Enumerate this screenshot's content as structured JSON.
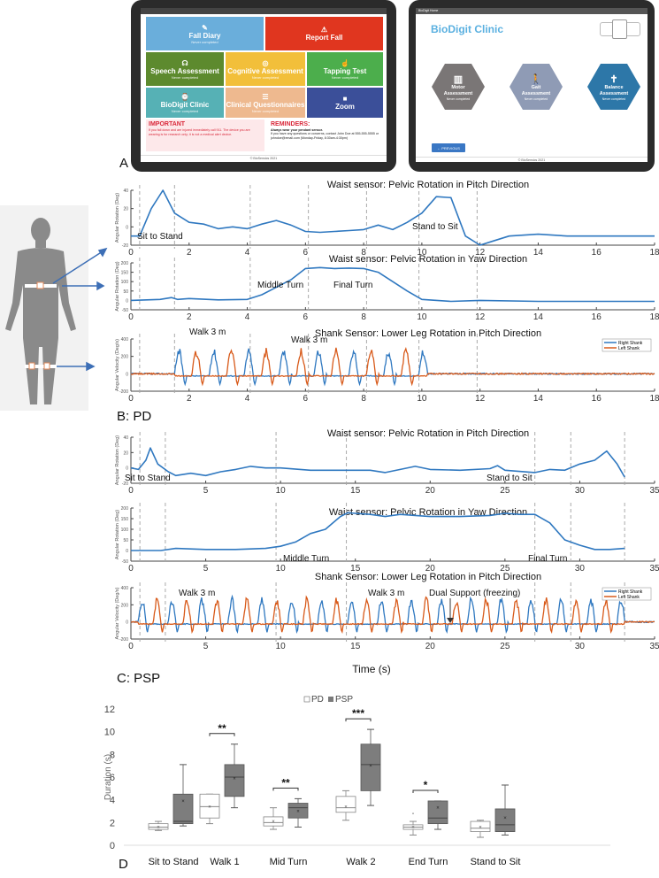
{
  "panel_labels": {
    "a": "A",
    "b": "B: PD",
    "c": "C: PSP",
    "d": "D"
  },
  "tablet_home": {
    "tiles": [
      {
        "label": "Fall Diary",
        "sub": "Never completed",
        "icon": "pencil-icon",
        "color": "#6aaedb"
      },
      {
        "label": "Report Fall",
        "sub": "",
        "icon": "warning-icon",
        "color": "#e0361f"
      },
      {
        "label": "Speech Assessment",
        "sub": "Never completed",
        "icon": "speaker-icon",
        "color": "#5d8a2e"
      },
      {
        "label": "Cognitive Assessment",
        "sub": "Never completed",
        "icon": "brain-icon",
        "color": "#f2bf3a"
      },
      {
        "label": "Tapping Test",
        "sub": "Never completed",
        "icon": "tap-icon",
        "color": "#4cae4c"
      },
      {
        "label": "BioDigit Clinic",
        "sub": "Never completed",
        "icon": "sensor-icon",
        "color": "#56b1b5"
      },
      {
        "label": "Clinical Questionnaires",
        "sub": "Never completed",
        "icon": "clipboard-icon",
        "color": "#eeb98f"
      },
      {
        "label": "Zoom",
        "sub": "",
        "icon": "video-icon",
        "color": "#3b4f99"
      }
    ],
    "important_title": "IMPORTANT",
    "important_text": "If you fall down and are injured immediately call 911. The device you are wearing is for research only; it is not a medical alert device.",
    "reminders_title": "REMINDERS:",
    "reminders_bold": "Always wear your pendant sensor.",
    "reminders_text": "If you have any questions or concerns, contact John Doe at 555-555-5555 or johndoe@email.com (Monday-Friday, 8:30am-4:30pm)",
    "footer": "© BioSensics 2021"
  },
  "tablet_clinic": {
    "topbar": "BioDigit Home",
    "title": "BioDigit Clinic",
    "hexes": [
      {
        "label1": "Motor",
        "label2": "Assessment",
        "sub": "Never completed",
        "color": "#7a7676",
        "icon": "bar-chart-icon"
      },
      {
        "label1": "Gait",
        "label2": "Assessment",
        "sub": "Never completed",
        "color": "#8f9bb5",
        "icon": "walking-icon"
      },
      {
        "label1": "Balance",
        "label2": "Assessment",
        "sub": "Never completed",
        "color": "#2d77a8",
        "icon": "balance-icon"
      }
    ],
    "previous_button": "← PREVIOUS",
    "footer": "© BioSensics 2021"
  },
  "chart_data": [
    {
      "type": "line",
      "panel": "B: PD",
      "title": "Waist sensor: Pelvic Rotation in Pitch Direction",
      "ylabel": "Angular Rotation (Deg)",
      "xlim": [
        0,
        18
      ],
      "ylim": [
        -20,
        40
      ],
      "xticks": [
        0,
        2,
        4,
        6,
        8,
        10,
        12,
        14,
        16,
        18
      ],
      "yticks": [
        -20,
        0,
        20,
        40
      ],
      "annotations": [
        "Sit to Stand",
        "Stand to Sit"
      ],
      "x": [
        0,
        0.3,
        0.7,
        1.1,
        1.5,
        2,
        2.5,
        3,
        3.5,
        4,
        4.5,
        5,
        5.5,
        6,
        6.5,
        7,
        7.5,
        8,
        8.5,
        9,
        9.5,
        10,
        10.5,
        11,
        11.5,
        12,
        12.5,
        13,
        14,
        15,
        16,
        17,
        18
      ],
      "values": [
        -10,
        -10,
        20,
        40,
        15,
        5,
        3,
        -2,
        0,
        -2,
        3,
        7,
        2,
        -5,
        -6,
        -5,
        -4,
        -3,
        2,
        -3,
        5,
        15,
        33,
        32,
        -10,
        -20,
        -15,
        -10,
        -8,
        -10,
        -10,
        -10,
        -10
      ]
    },
    {
      "type": "line",
      "panel": "B: PD",
      "title": "Waist sensor: Pelvic Rotation in Yaw Direction",
      "ylabel": "Angular Rotation (Deg)",
      "xlim": [
        0,
        18
      ],
      "ylim": [
        -50,
        200
      ],
      "xticks": [
        0,
        2,
        4,
        6,
        8,
        10,
        12,
        14,
        16,
        18
      ],
      "yticks": [
        -50,
        0,
        50,
        100,
        150,
        200
      ],
      "annotations": [
        "Middle Turn",
        "Final Turn"
      ],
      "x": [
        0,
        1,
        1.4,
        1.6,
        2,
        3,
        4,
        4.5,
        5,
        5.5,
        6,
        6.5,
        7,
        7.5,
        8,
        8.5,
        9,
        9.5,
        10,
        11,
        12,
        14,
        16,
        18
      ],
      "values": [
        0,
        5,
        15,
        5,
        10,
        3,
        5,
        30,
        70,
        110,
        170,
        175,
        170,
        172,
        170,
        150,
        100,
        50,
        5,
        -5,
        0,
        -5,
        -5,
        -5
      ]
    },
    {
      "type": "line",
      "panel": "B: PD",
      "title": "Shank Sensor: Lower Leg Rotation in Pitch Direction",
      "ylabel": "Angular Velocity (Deg/s)",
      "xlim": [
        0,
        18
      ],
      "ylim": [
        -200,
        400
      ],
      "xticks": [
        0,
        2,
        4,
        6,
        8,
        10,
        12,
        14,
        16,
        18
      ],
      "yticks": [
        -200,
        0,
        200,
        400
      ],
      "legend": [
        "Right Shank",
        "Left Shank"
      ],
      "annotations": [
        "Walk 3 m",
        "Walk 3 m"
      ],
      "series": [
        {
          "name": "Right Shank",
          "color": "#2f78c0"
        },
        {
          "name": "Left Shank",
          "color": "#d85a1a"
        }
      ]
    },
    {
      "type": "line",
      "panel": "C: PSP",
      "title": "Waist sensor: Pelvic Rotation in Pitch Direction",
      "ylabel": "Angular Rotation (Deg)",
      "xlim": [
        0,
        35
      ],
      "ylim": [
        -20,
        40
      ],
      "xticks": [
        0,
        5,
        10,
        15,
        20,
        25,
        30,
        35
      ],
      "yticks": [
        -20,
        0,
        20,
        40
      ],
      "annotations": [
        "Sit to Stand",
        "Stand to Sit"
      ],
      "x": [
        0,
        0.5,
        1,
        1.3,
        1.8,
        2.5,
        3,
        4,
        5,
        6,
        7,
        8,
        9,
        10,
        12,
        14,
        16,
        17,
        18,
        19,
        20,
        22,
        24,
        24.5,
        25,
        27,
        28,
        29,
        30,
        31,
        31.8,
        32.5,
        33
      ],
      "values": [
        0,
        -2,
        10,
        26,
        5,
        -5,
        -10,
        -7,
        -10,
        -5,
        -2,
        2,
        0,
        0,
        -3,
        -3,
        -3,
        -6,
        -2,
        2,
        -2,
        -3,
        -1,
        3,
        -3,
        -6,
        -2,
        -3,
        5,
        10,
        22,
        5,
        -12
      ]
    },
    {
      "type": "line",
      "panel": "C: PSP",
      "title": "Waist sensor: Pelvic Rotation in Yaw Direction",
      "ylabel": "Angular Rotation (Deg)",
      "xlim": [
        0,
        35
      ],
      "ylim": [
        -50,
        200
      ],
      "xticks": [
        0,
        5,
        10,
        15,
        20,
        25,
        30,
        35
      ],
      "yticks": [
        -50,
        0,
        50,
        100,
        150,
        200
      ],
      "annotations": [
        "Middle Turn",
        "Final Turn"
      ],
      "x": [
        0,
        2,
        3,
        5,
        7,
        9,
        10,
        11,
        12,
        13,
        14,
        14.5,
        15,
        16,
        17,
        18,
        19,
        20,
        22,
        24,
        25,
        26,
        27,
        28,
        29,
        30,
        31,
        32,
        33
      ],
      "values": [
        0,
        0,
        10,
        5,
        5,
        10,
        20,
        40,
        80,
        100,
        160,
        178,
        175,
        170,
        160,
        170,
        165,
        160,
        160,
        165,
        175,
        170,
        170,
        130,
        50,
        25,
        5,
        5,
        10
      ]
    },
    {
      "type": "line",
      "panel": "C: PSP",
      "title": "Shank Sensor: Lower Leg Rotation in Pitch Direction",
      "xlabel": "Time (s)",
      "ylabel": "Angular Velocity (Deg/s)",
      "xlim": [
        0,
        35
      ],
      "ylim": [
        -200,
        400
      ],
      "xticks": [
        0,
        5,
        10,
        15,
        20,
        25,
        30,
        35
      ],
      "yticks": [
        -200,
        0,
        200,
        400
      ],
      "legend": [
        "Right Shank",
        "Left Shank"
      ],
      "annotations": [
        "Walk 3 m",
        "Walk 3 m",
        "Dual Support (freezing)"
      ],
      "series": [
        {
          "name": "Right Shank",
          "color": "#2f78c0"
        },
        {
          "name": "Left Shank",
          "color": "#d85a1a"
        }
      ]
    },
    {
      "type": "box",
      "panel": "D",
      "ylabel": "Duration (s)",
      "ylim": [
        0,
        12
      ],
      "yticks": [
        0,
        2,
        4,
        6,
        8,
        10,
        12
      ],
      "legend": [
        "PD",
        "PSP"
      ],
      "categories": [
        "Sit to Stand",
        "Walk 1",
        "Mid Turn",
        "Walk 2",
        "End Turn",
        "Stand to Sit"
      ],
      "significance": [
        "",
        "**",
        "**",
        "***",
        "*",
        ""
      ],
      "series": [
        {
          "name": "PD",
          "boxes": [
            {
              "min": 1.3,
              "q1": 1.4,
              "median": 1.6,
              "q3": 1.9,
              "max": 2.1,
              "mean": 1.6
            },
            {
              "min": 1.9,
              "q1": 2.4,
              "median": 3.4,
              "q3": 4.5,
              "max": 4.5,
              "mean": 3.4
            },
            {
              "min": 1.4,
              "q1": 1.7,
              "median": 2.0,
              "q3": 2.5,
              "max": 3.3,
              "mean": 2.1
            },
            {
              "min": 2.2,
              "q1": 2.9,
              "median": 3.3,
              "q3": 4.3,
              "max": 4.8,
              "mean": 3.4
            },
            {
              "min": 0.9,
              "q1": 1.4,
              "median": 1.6,
              "q3": 1.8,
              "max": 2.1,
              "mean": 1.6,
              "outlier": 2.8
            },
            {
              "min": 0.7,
              "q1": 1.2,
              "median": 1.5,
              "q3": 2.1,
              "max": 2.2,
              "mean": 1.6
            }
          ]
        },
        {
          "name": "PSP",
          "boxes": [
            {
              "min": 1.7,
              "q1": 1.9,
              "median": 2.1,
              "q3": 4.5,
              "max": 7.1,
              "mean": 3.9
            },
            {
              "min": 3.3,
              "q1": 4.3,
              "median": 6.0,
              "q3": 7.1,
              "max": 8.9,
              "mean": 5.9
            },
            {
              "min": 1.6,
              "q1": 2.4,
              "median": 3.3,
              "q3": 3.7,
              "max": 4.1,
              "mean": 3.0
            },
            {
              "min": 3.5,
              "q1": 4.8,
              "median": 7.1,
              "q3": 8.9,
              "max": 10.2,
              "mean": 7.0
            },
            {
              "min": 1.4,
              "q1": 1.9,
              "median": 2.4,
              "q3": 3.9,
              "max": 3.9,
              "mean": 3.3
            },
            {
              "min": 0.9,
              "q1": 1.2,
              "median": 1.8,
              "q3": 3.2,
              "max": 5.3,
              "mean": 2.4
            }
          ]
        }
      ]
    }
  ]
}
